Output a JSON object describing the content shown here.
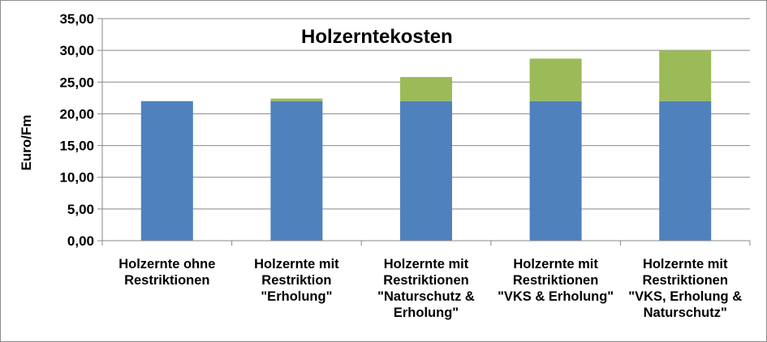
{
  "chart_data": {
    "type": "bar",
    "stacked": true,
    "title": "Holzerntekosten",
    "ylabel": "Euro/Fm",
    "xlabel": "",
    "ylim": [
      0,
      35
    ],
    "yticks": [
      "0,00",
      "5,00",
      "10,00",
      "15,00",
      "20,00",
      "25,00",
      "30,00",
      "35,00"
    ],
    "grid": true,
    "categories": [
      [
        "Holzernte ohne",
        "Restriktionen"
      ],
      [
        "Holzernte mit",
        "Restriktion",
        "\"Erholung\""
      ],
      [
        "Holzernte mit",
        "Restriktionen",
        "\"Naturschutz &",
        "Erholung\""
      ],
      [
        "Holzernte mit",
        "Restriktionen",
        "\"VKS & Erholung\""
      ],
      [
        "Holzernte mit",
        "Restriktionen",
        "\"VKS, Erholung &",
        "Naturschutz\""
      ]
    ],
    "series": [
      {
        "color": "#4f81bd",
        "values": [
          22.0,
          22.0,
          22.0,
          22.0,
          22.0
        ]
      },
      {
        "color": "#9bbb59",
        "values": [
          0.0,
          0.4,
          3.8,
          6.7,
          8.0
        ]
      }
    ]
  }
}
